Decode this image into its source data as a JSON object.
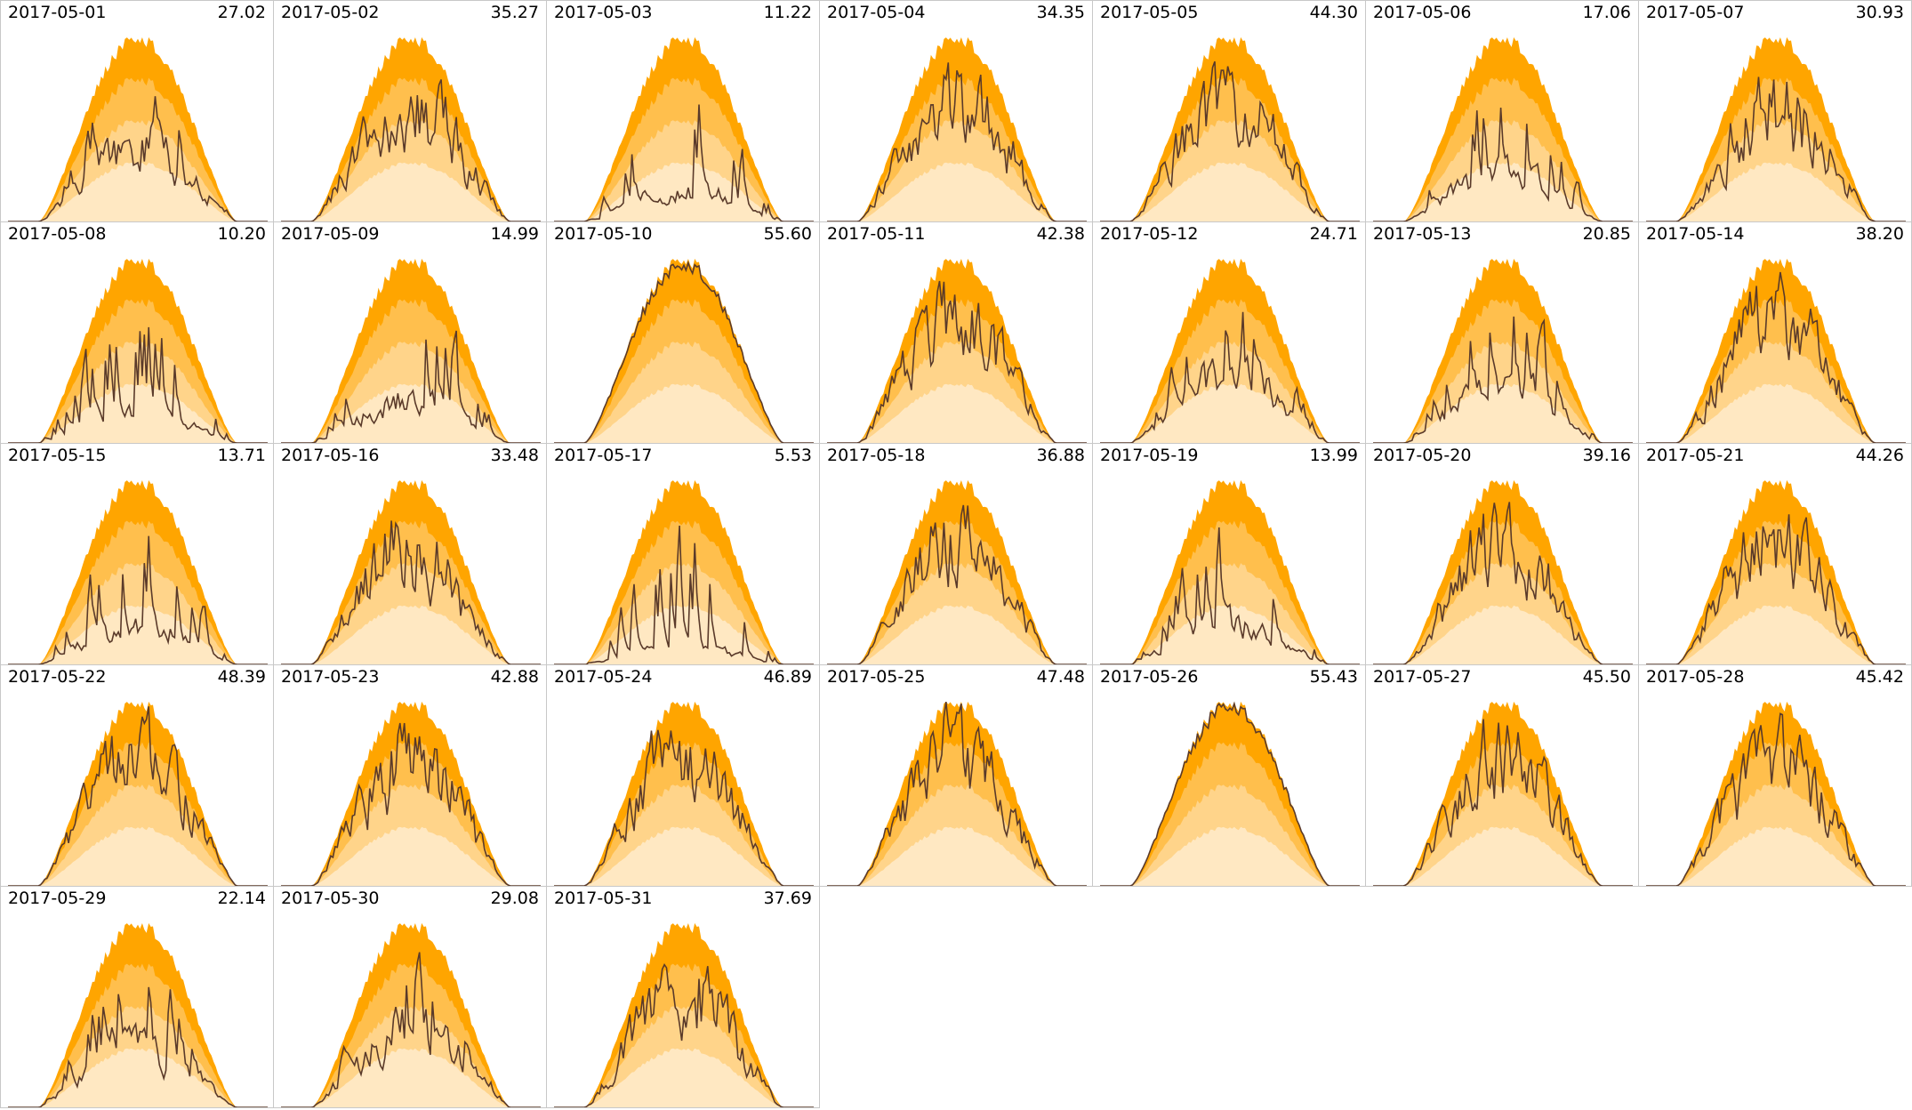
{
  "chart_data": {
    "type": "area",
    "layout": "small-multiples",
    "columns": 7,
    "band_colors": [
      "#ffe8c2",
      "#ffd48a",
      "#ffbf4d",
      "#ffa500"
    ],
    "line_color": "#5a3a2a",
    "grid": false,
    "panels": [
      {
        "date": "2017-05-01",
        "value": "27.02",
        "shape": 0.52
      },
      {
        "date": "2017-05-02",
        "value": "35.27",
        "shape": 0.67
      },
      {
        "date": "2017-05-03",
        "value": "11.22",
        "shape": 0.21
      },
      {
        "date": "2017-05-04",
        "value": "34.35",
        "shape": 0.65
      },
      {
        "date": "2017-05-05",
        "value": "44.30",
        "shape": 0.84
      },
      {
        "date": "2017-05-06",
        "value": "17.06",
        "shape": 0.32
      },
      {
        "date": "2017-05-07",
        "value": "30.93",
        "shape": 0.59
      },
      {
        "date": "2017-05-08",
        "value": "10.20",
        "shape": 0.19
      },
      {
        "date": "2017-05-09",
        "value": "14.99",
        "shape": 0.28
      },
      {
        "date": "2017-05-10",
        "value": "55.60",
        "shape": 0.98
      },
      {
        "date": "2017-05-11",
        "value": "42.38",
        "shape": 0.8
      },
      {
        "date": "2017-05-12",
        "value": "24.71",
        "shape": 0.47
      },
      {
        "date": "2017-05-13",
        "value": "20.85",
        "shape": 0.4
      },
      {
        "date": "2017-05-14",
        "value": "38.20",
        "shape": 0.72
      },
      {
        "date": "2017-05-15",
        "value": "13.71",
        "shape": 0.26
      },
      {
        "date": "2017-05-16",
        "value": "33.48",
        "shape": 0.63
      },
      {
        "date": "2017-05-17",
        "value": "5.53",
        "shape": 0.11
      },
      {
        "date": "2017-05-18",
        "value": "36.88",
        "shape": 0.7
      },
      {
        "date": "2017-05-19",
        "value": "13.99",
        "shape": 0.27
      },
      {
        "date": "2017-05-20",
        "value": "39.16",
        "shape": 0.74
      },
      {
        "date": "2017-05-21",
        "value": "44.26",
        "shape": 0.84
      },
      {
        "date": "2017-05-22",
        "value": "48.39",
        "shape": 0.9
      },
      {
        "date": "2017-05-23",
        "value": "42.88",
        "shape": 0.81
      },
      {
        "date": "2017-05-24",
        "value": "46.89",
        "shape": 0.88
      },
      {
        "date": "2017-05-25",
        "value": "47.48",
        "shape": 0.89
      },
      {
        "date": "2017-05-26",
        "value": "55.43",
        "shape": 0.99
      },
      {
        "date": "2017-05-27",
        "value": "45.50",
        "shape": 0.86
      },
      {
        "date": "2017-05-28",
        "value": "45.42",
        "shape": 0.86
      },
      {
        "date": "2017-05-29",
        "value": "22.14",
        "shape": 0.42
      },
      {
        "date": "2017-05-30",
        "value": "29.08",
        "shape": 0.55
      },
      {
        "date": "2017-05-31",
        "value": "37.69",
        "shape": 0.71
      }
    ]
  }
}
